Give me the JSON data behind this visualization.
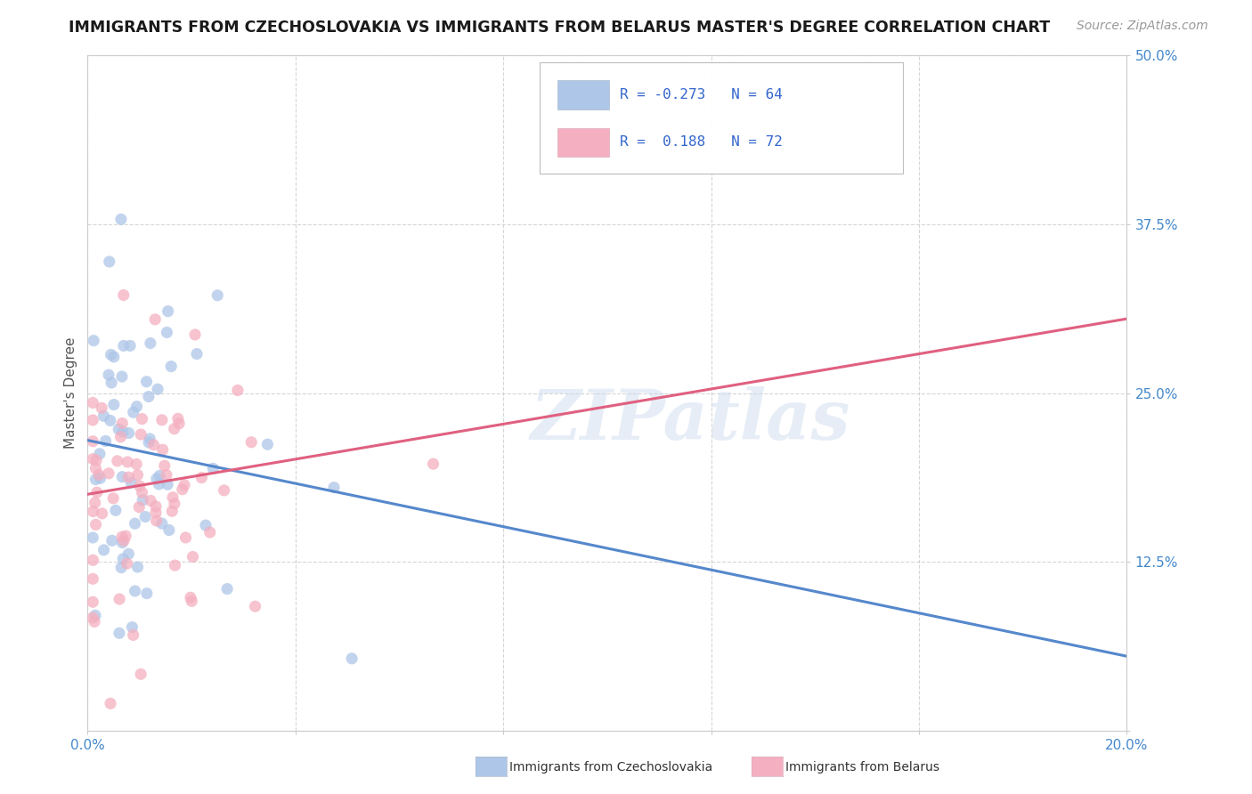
{
  "title": "IMMIGRANTS FROM CZECHOSLOVAKIA VS IMMIGRANTS FROM BELARUS MASTER'S DEGREE CORRELATION CHART",
  "source_text": "Source: ZipAtlas.com",
  "xlabel": "",
  "ylabel": "Master's Degree",
  "xlim": [
    0.0,
    0.2
  ],
  "ylim": [
    0.0,
    0.5
  ],
  "xticks": [
    0.0,
    0.04,
    0.08,
    0.12,
    0.16,
    0.2
  ],
  "yticks": [
    0.0,
    0.125,
    0.25,
    0.375,
    0.5
  ],
  "blue_R": -0.273,
  "blue_N": 64,
  "pink_R": 0.188,
  "pink_N": 72,
  "blue_color": "#aec6e8",
  "pink_color": "#f4afc0",
  "blue_line_color": "#5588cc",
  "pink_line_color": "#e06080",
  "legend_R_color": "#3366cc",
  "tick_color": "#4488cc",
  "watermark": "ZIPatlas",
  "background_color": "#ffffff",
  "grid_color": "#cccccc",
  "blue_line_y0": 0.215,
  "blue_line_y1": 0.055,
  "pink_line_y0": 0.175,
  "pink_line_y1": 0.305,
  "legend_items": [
    {
      "label": "R = -0.273   N = 64",
      "color": "#aec6e8"
    },
    {
      "label": "R =  0.188   N = 72",
      "color": "#f4afc0"
    }
  ],
  "bottom_legend": [
    {
      "label": "Immigrants from Czechoslovakia",
      "color": "#aec6e8"
    },
    {
      "label": "Immigrants from Belarus",
      "color": "#f4afc0"
    }
  ]
}
